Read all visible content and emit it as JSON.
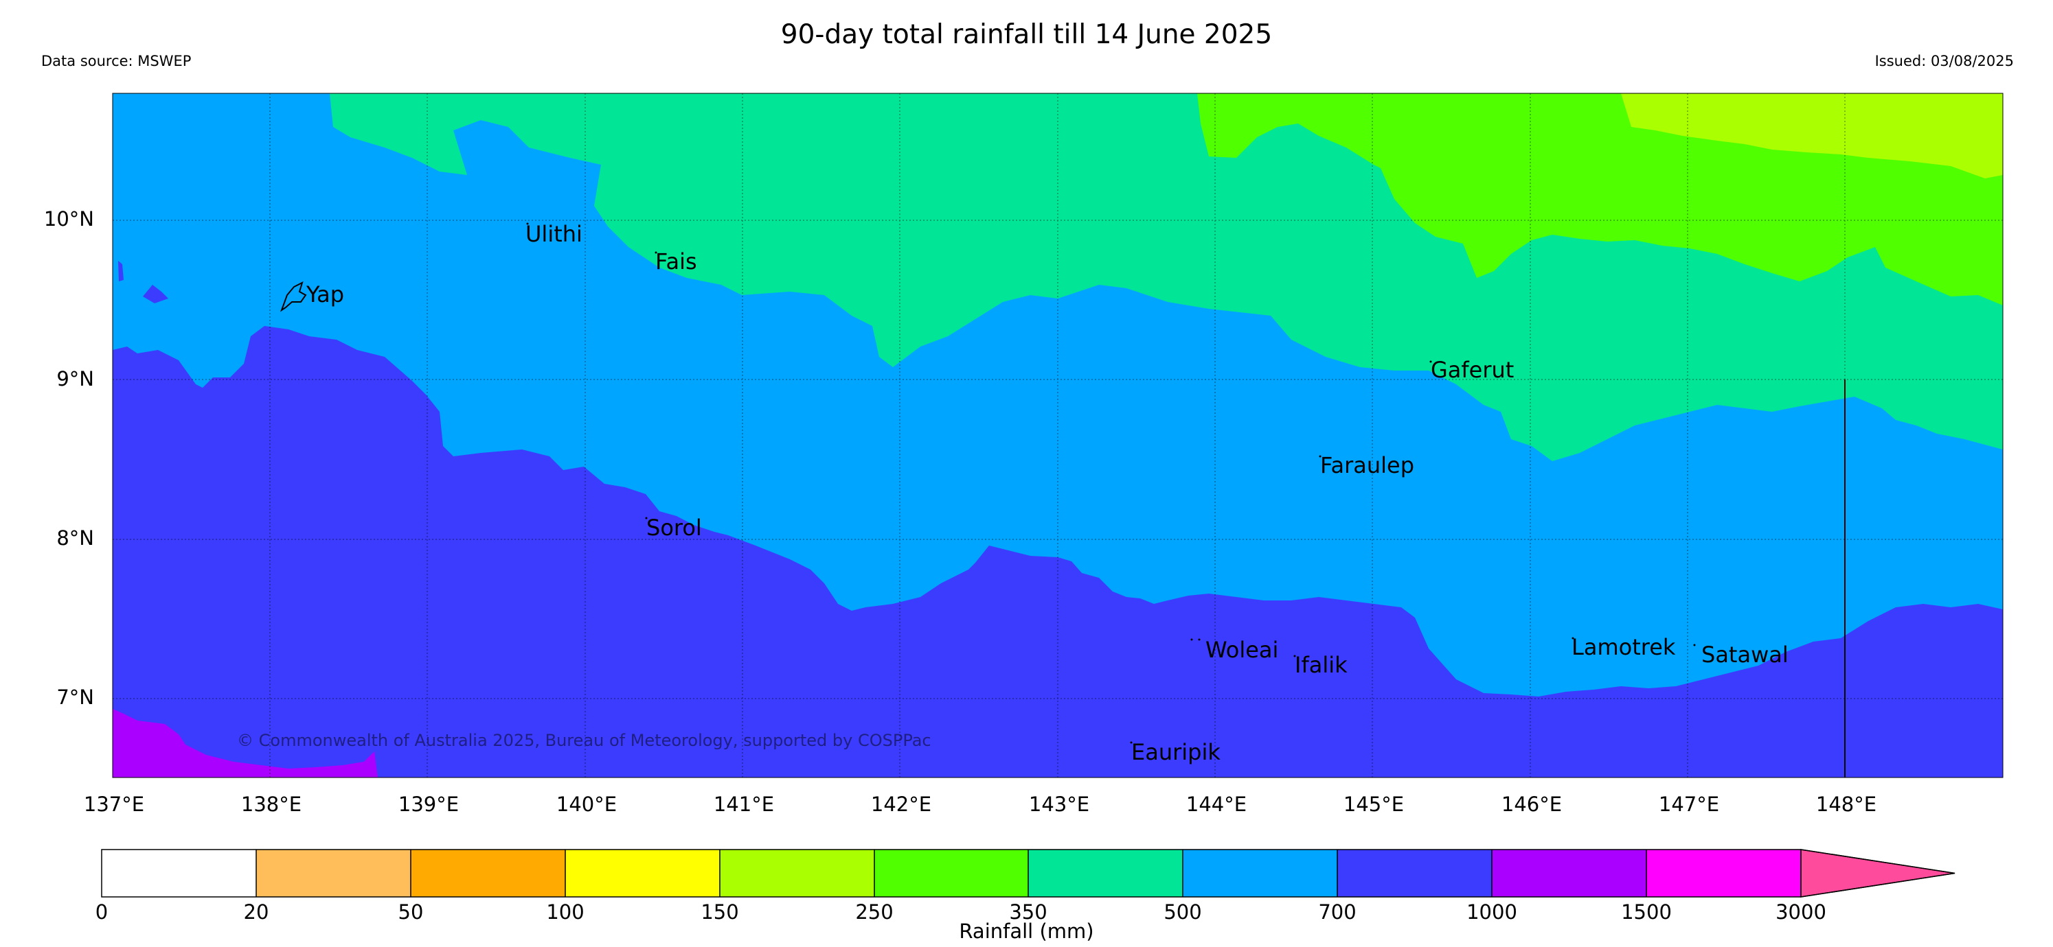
{
  "title": "90-day total rainfall till 14 June 2025",
  "data_source": "Data source: MSWEP",
  "issued": "Issued: 03/08/2025",
  "copyright": "© Commonwealth of Australia 2025, Bureau of Meteorology, supported by COSPPac",
  "map": {
    "lat_labels": [
      "10°N",
      "9°N",
      "8°N",
      "7°N"
    ],
    "lon_labels": [
      "137°E",
      "138°E",
      "139°E",
      "140°E",
      "141°E",
      "142°E",
      "143°E",
      "144°E",
      "145°E",
      "146°E",
      "147°E",
      "148°E"
    ],
    "places": [
      "Ulithi",
      "Fais",
      "Yap",
      "Gaferut",
      "Faraulep",
      "Sorol",
      "Woleai",
      "Ifalik",
      "Lamotrek",
      "Satawal",
      "Eauripik"
    ]
  },
  "colorbar": {
    "label": "Rainfall (mm)",
    "ticks": [
      "0",
      "20",
      "50",
      "100",
      "150",
      "250",
      "350",
      "500",
      "700",
      "1000",
      "1500",
      "3000"
    ],
    "colors": [
      "#ffffff",
      "#ffbe5a",
      "#ffaa00",
      "#ffff00",
      "#aaff00",
      "#50ff00",
      "#00e696",
      "#00a5ff",
      "#3c3cff",
      "#aa00ff",
      "#ff00ff",
      "#ff4b9b"
    ]
  }
}
